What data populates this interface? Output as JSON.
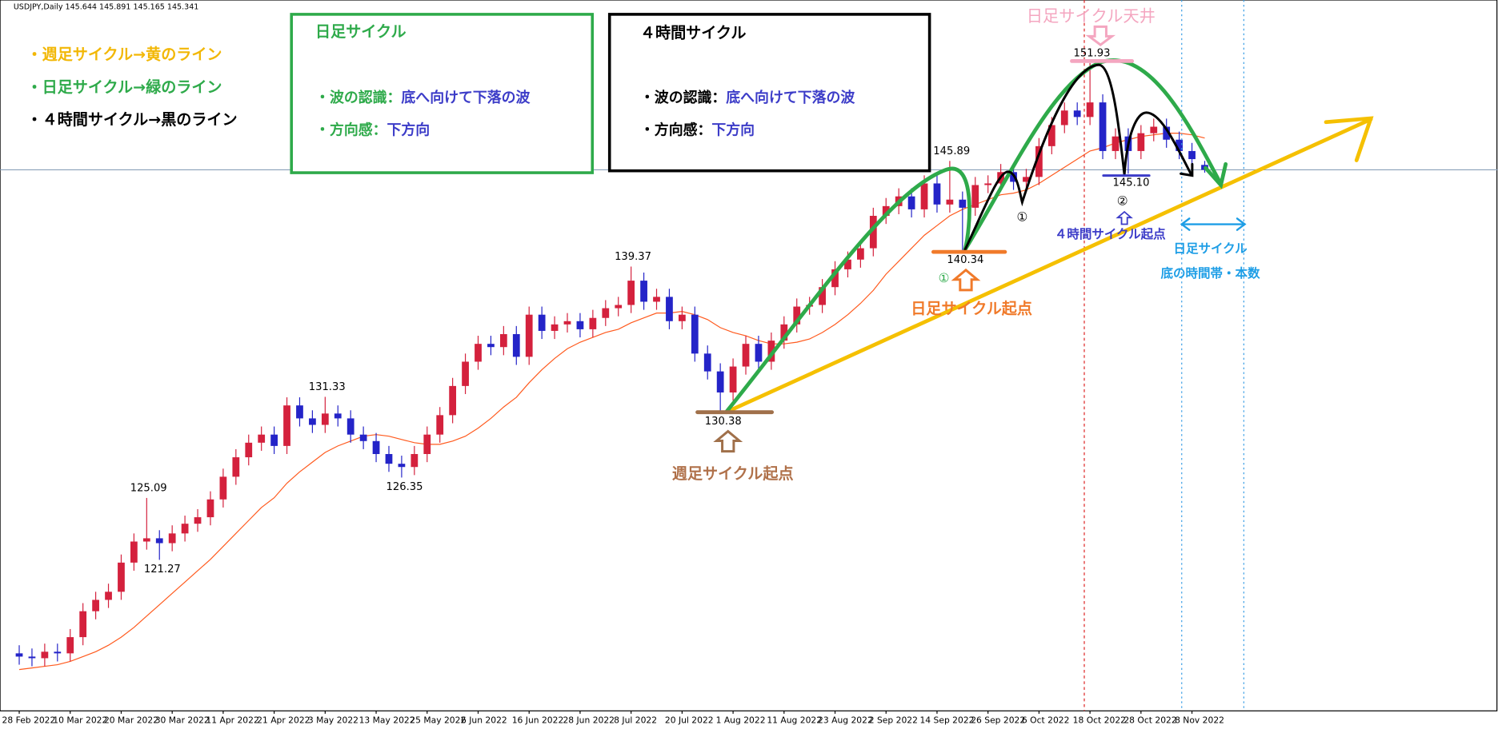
{
  "chart_data": {
    "type": "candlestick",
    "title": "USDJPY,Daily",
    "up_color": "#d4213d",
    "down_color": "#2424c8",
    "xlim": [
      -1.5,
      116
    ],
    "ylim": [
      111.95,
      155.82
    ],
    "xticks": [
      {
        "value": 0,
        "label": "28 Feb 2022"
      },
      {
        "value": 4,
        "label": "10 Mar 2022"
      },
      {
        "value": 8,
        "label": "20 Mar 2022"
      },
      {
        "value": 12,
        "label": "30 Mar 2022"
      },
      {
        "value": 16,
        "label": "11 Apr 2022"
      },
      {
        "value": 20,
        "label": "21 Apr 2022"
      },
      {
        "value": 24,
        "label": "3 May 2022"
      },
      {
        "value": 28,
        "label": "13 May 2022"
      },
      {
        "value": 32,
        "label": "25 May 2022"
      },
      {
        "value": 36,
        "label": "6 Jun 2022"
      },
      {
        "value": 40,
        "label": "16 Jun 2022"
      },
      {
        "value": 44,
        "label": "28 Jun 2022"
      },
      {
        "value": 48,
        "label": "8 Jul 2022"
      },
      {
        "value": 52,
        "label": "20 Jul 2022"
      },
      {
        "value": 56,
        "label": "1 Aug 2022"
      },
      {
        "value": 60,
        "label": "11 Aug 2022"
      },
      {
        "value": 64,
        "label": "23 Aug 2022"
      },
      {
        "value": 68,
        "label": "2 Sep 2022"
      },
      {
        "value": 72,
        "label": "14 Sep 2022"
      },
      {
        "value": 76,
        "label": "26 Sep 2022"
      },
      {
        "value": 80,
        "label": "6 Oct 2022"
      },
      {
        "value": 84,
        "label": "18 Oct 2022"
      },
      {
        "value": 88,
        "label": "28 Oct 2022"
      },
      {
        "value": 92,
        "label": "8 Nov 2022"
      }
    ],
    "open": [
      115.5,
      115.3,
      115.2,
      115.6,
      115.5,
      116.5,
      118.1,
      118.8,
      119.3,
      121.1,
      122.4,
      122.6,
      122.3,
      122.9,
      123.5,
      123.9,
      125.0,
      126.4,
      127.6,
      128.5,
      129.0,
      128.3,
      130.8,
      130.0,
      129.6,
      130.3,
      130.0,
      129.0,
      128.6,
      127.8,
      127.2,
      127.0,
      127.8,
      129.0,
      130.2,
      132.0,
      133.5,
      134.6,
      134.4,
      135.2,
      133.8,
      136.4,
      135.4,
      135.8,
      136.0,
      135.5,
      136.2,
      136.8,
      137.0,
      138.5,
      137.2,
      137.5,
      136.0,
      136.4,
      134.0,
      132.9,
      131.6,
      133.2,
      134.6,
      133.5,
      134.8,
      135.8,
      136.9,
      137.0,
      138.1,
      139.2,
      139.8,
      140.5,
      142.5,
      143.1,
      143.7,
      142.9,
      144.5,
      143.2,
      143.5,
      143.0,
      144.4,
      144.5,
      145.2,
      144.6,
      144.9,
      146.8,
      148.1,
      149.0,
      148.6,
      149.5,
      146.5,
      147.4,
      146.5,
      147.6,
      148.0,
      147.2,
      146.5,
      145.644
    ],
    "high": [
      116.0,
      115.8,
      116.1,
      116.1,
      117.0,
      118.6,
      119.3,
      119.8,
      121.6,
      122.9,
      125.09,
      123.1,
      123.4,
      124.0,
      124.4,
      125.5,
      126.9,
      128.1,
      129.0,
      129.5,
      129.5,
      131.3,
      131.3,
      130.5,
      131.33,
      130.8,
      130.5,
      129.5,
      129.1,
      128.3,
      127.7,
      128.3,
      129.5,
      130.7,
      132.5,
      134.0,
      135.1,
      135.1,
      135.7,
      135.7,
      136.9,
      136.9,
      136.3,
      136.5,
      136.5,
      136.7,
      137.3,
      137.5,
      139.37,
      139.0,
      138.0,
      138.0,
      136.9,
      136.9,
      134.5,
      133.4,
      133.7,
      135.1,
      135.1,
      135.3,
      136.3,
      137.4,
      137.5,
      138.6,
      139.7,
      140.3,
      141.0,
      143.0,
      143.6,
      144.2,
      144.2,
      145.0,
      145.0,
      145.89,
      144.0,
      144.9,
      145.0,
      145.7,
      145.7,
      145.4,
      147.3,
      148.6,
      149.5,
      149.5,
      151.93,
      150.0,
      147.9,
      147.9,
      148.1,
      148.5,
      148.5,
      147.7,
      147.0,
      145.891
    ],
    "low": [
      114.8,
      114.7,
      114.7,
      115.0,
      115.0,
      116.0,
      117.6,
      118.3,
      118.8,
      120.6,
      121.9,
      121.27,
      121.8,
      122.4,
      123.0,
      123.4,
      124.5,
      125.9,
      127.1,
      128.0,
      127.8,
      127.8,
      129.5,
      129.1,
      129.1,
      129.5,
      128.5,
      128.1,
      127.3,
      126.7,
      126.35,
      126.5,
      127.3,
      128.5,
      129.7,
      131.5,
      133.0,
      133.9,
      133.9,
      133.3,
      133.3,
      134.9,
      134.9,
      135.3,
      135.0,
      135.0,
      135.7,
      136.3,
      136.5,
      136.7,
      136.7,
      135.5,
      135.5,
      133.5,
      132.4,
      130.38,
      131.1,
      132.7,
      133.0,
      133.0,
      134.3,
      135.3,
      136.4,
      136.5,
      137.6,
      138.7,
      139.3,
      140.0,
      142.0,
      142.6,
      142.4,
      142.4,
      142.7,
      142.7,
      140.34,
      142.5,
      143.9,
      144.0,
      144.1,
      144.1,
      144.4,
      146.3,
      147.6,
      148.1,
      148.1,
      146.0,
      146.0,
      145.1,
      146.0,
      147.1,
      146.7,
      146.0,
      145.5,
      145.165
    ],
    "close": [
      115.3,
      115.2,
      115.6,
      115.5,
      116.5,
      118.1,
      118.8,
      119.3,
      121.1,
      122.4,
      122.6,
      122.3,
      122.9,
      123.5,
      123.9,
      125.0,
      126.4,
      127.6,
      128.5,
      129.0,
      128.3,
      130.8,
      130.0,
      129.6,
      130.3,
      130.0,
      129.0,
      128.6,
      127.8,
      127.2,
      127.0,
      127.8,
      129.0,
      130.2,
      132.0,
      133.5,
      134.6,
      134.4,
      135.2,
      133.8,
      136.4,
      135.4,
      135.8,
      136.0,
      135.5,
      136.2,
      136.8,
      137.0,
      138.5,
      137.2,
      137.5,
      136.0,
      136.4,
      134.0,
      132.9,
      131.6,
      133.2,
      134.6,
      133.5,
      134.8,
      135.8,
      136.9,
      137.0,
      138.1,
      139.2,
      139.8,
      140.5,
      142.5,
      143.1,
      143.7,
      142.9,
      144.5,
      143.2,
      143.5,
      143.0,
      144.4,
      144.5,
      145.2,
      144.6,
      144.9,
      146.8,
      148.1,
      149.0,
      148.6,
      149.5,
      146.5,
      147.4,
      146.5,
      147.6,
      148.0,
      147.2,
      146.5,
      146.0,
      145.341
    ],
    "high_labels": [
      null,
      null,
      null,
      null,
      null,
      null,
      null,
      null,
      null,
      null,
      "125.09",
      null,
      null,
      null,
      null,
      null,
      null,
      null,
      null,
      null,
      null,
      null,
      null,
      null,
      "131.33",
      null,
      null,
      null,
      null,
      null,
      null,
      null,
      null,
      null,
      null,
      null,
      null,
      null,
      null,
      null,
      null,
      null,
      null,
      null,
      null,
      null,
      null,
      null,
      "139.37",
      null,
      null,
      null,
      null,
      null,
      null,
      null,
      null,
      null,
      null,
      null,
      null,
      null,
      null,
      null,
      null,
      null,
      null,
      null,
      null,
      null,
      null,
      null,
      null,
      "145.89",
      null,
      null,
      null,
      null,
      null,
      null,
      null,
      null,
      null,
      null,
      "151.93",
      null,
      null,
      null,
      null,
      null,
      null,
      null,
      null,
      null
    ],
    "low_labels": [
      null,
      null,
      null,
      null,
      null,
      null,
      null,
      null,
      null,
      null,
      null,
      "121.27",
      null,
      null,
      null,
      null,
      null,
      null,
      null,
      null,
      null,
      null,
      null,
      null,
      null,
      null,
      null,
      null,
      null,
      null,
      "126.35",
      null,
      null,
      null,
      null,
      null,
      null,
      null,
      null,
      null,
      null,
      null,
      null,
      null,
      null,
      null,
      null,
      null,
      null,
      null,
      null,
      null,
      null,
      null,
      null,
      "130.38",
      null,
      null,
      null,
      null,
      null,
      null,
      null,
      null,
      null,
      null,
      null,
      null,
      null,
      null,
      null,
      null,
      null,
      null,
      "140.34",
      null,
      null,
      null,
      null,
      null,
      null,
      null,
      null,
      null,
      null,
      null,
      null,
      "145.10",
      null,
      null,
      null,
      null,
      null,
      null
    ],
    "series": [
      {
        "color": "#ff5a1e",
        "values": [
          114.5,
          114.6,
          114.7,
          114.8,
          115.0,
          115.3,
          115.6,
          116.0,
          116.5,
          117.1,
          117.8,
          118.5,
          119.2,
          119.9,
          120.6,
          121.3,
          122.1,
          122.9,
          123.7,
          124.5,
          125.1,
          126.0,
          126.7,
          127.3,
          127.9,
          128.3,
          128.6,
          128.9,
          129.0,
          128.9,
          128.7,
          128.5,
          128.4,
          128.4,
          128.6,
          128.9,
          129.4,
          130.0,
          130.7,
          131.3,
          132.2,
          133.0,
          133.7,
          134.3,
          134.7,
          135.0,
          135.3,
          135.5,
          135.9,
          136.2,
          136.5,
          136.5,
          136.6,
          136.4,
          136.1,
          135.6,
          135.3,
          135.1,
          134.8,
          134.6,
          134.6,
          134.7,
          134.9,
          135.3,
          135.8,
          136.4,
          137.1,
          137.9,
          138.9,
          139.7,
          140.5,
          141.3,
          141.9,
          142.5,
          142.9,
          143.2,
          143.5,
          143.8,
          143.9,
          144.1,
          144.5,
          145.0,
          145.5,
          146.0,
          146.5,
          146.7,
          147.0,
          147.2,
          147.4,
          147.5,
          147.6,
          147.6,
          147.5,
          147.3
        ]
      }
    ],
    "annotations": {
      "legend_weekly": "・週足サイクル→黄のライン",
      "legend_daily": "・日足サイクル→緑のライン",
      "legend_4h": "・４時間サイクル→黒のライン",
      "box_daily_title": "日足サイクル",
      "box_4h_title": "４時間サイクル",
      "wave_label": "・波の認識：",
      "wave_text": "底へ向けて下落の波",
      "direction_label": "・方向感：",
      "direction_text": "下方向",
      "daily_top": "日足サイクル天井",
      "weekly_start": "週足サイクル起点",
      "daily_start": "日足サイクル起点",
      "h4_start": "４時間サイクル起点",
      "daily_bottom_1": "日足サイクル",
      "daily_bottom_2": "底の時間帯・本数",
      "mark_1": "①",
      "mark_2": "②"
    }
  }
}
